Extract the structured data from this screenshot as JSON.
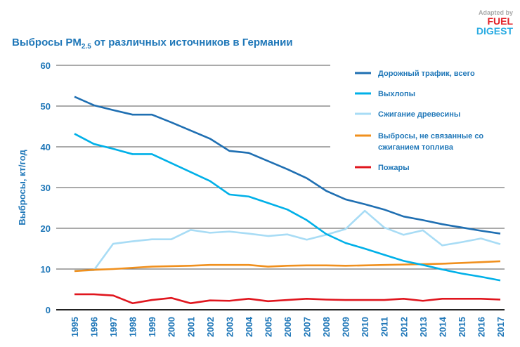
{
  "logo": {
    "line1": "Adapted by",
    "line2": "FUEL",
    "line3": "DIGEST"
  },
  "chart_data": {
    "type": "line",
    "title": "Выбросы PM",
    "title_sub": "2.5",
    "title_rest": " от различных источников в Германии",
    "ylabel": "Выбросы, кт/год",
    "xlabel": "",
    "ylim": [
      0,
      60
    ],
    "yticks": [
      0,
      10,
      20,
      30,
      40,
      50,
      60
    ],
    "grid": true,
    "legend": "right",
    "x": [
      1995,
      1996,
      1997,
      1998,
      1999,
      2000,
      2001,
      2002,
      2003,
      2004,
      2005,
      2006,
      2007,
      2008,
      2009,
      2010,
      2011,
      2012,
      2013,
      2014,
      2015,
      2016,
      2017
    ],
    "series": [
      {
        "name": "Дорожный трафик, всего",
        "color": "#1f6fb2",
        "values": [
          52.3,
          50.2,
          49.0,
          47.9,
          47.9,
          46.0,
          44.0,
          42.0,
          39.0,
          38.5,
          36.5,
          34.5,
          32.3,
          29.2,
          27.1,
          25.9,
          24.6,
          22.9,
          22.0,
          21.0,
          20.2,
          19.4,
          18.7
        ]
      },
      {
        "name": "Выхлопы",
        "color": "#00b0e8",
        "values": [
          43.2,
          40.7,
          39.5,
          38.2,
          38.2,
          36.0,
          33.8,
          31.6,
          28.3,
          27.8,
          26.2,
          24.6,
          22.0,
          18.6,
          16.4,
          15.0,
          13.5,
          12.0,
          11.0,
          9.9,
          8.9,
          8.1,
          7.2
        ]
      },
      {
        "name": "Сжигание древесины",
        "color": "#a8dcf5",
        "values": [
          9.6,
          9.7,
          16.2,
          16.8,
          17.3,
          17.3,
          19.6,
          18.9,
          19.2,
          18.7,
          18.1,
          18.5,
          17.2,
          18.4,
          19.8,
          24.3,
          20.2,
          18.4,
          19.5,
          15.8,
          16.6,
          17.5,
          16.1
        ]
      },
      {
        "name": "Выбросы, не связанные со сжиганием топлива",
        "name_lines": [
          "Выбросы, не связанные со",
          "сжиганием топлива"
        ],
        "color": "#f0901e",
        "values": [
          9.5,
          9.8,
          10.0,
          10.3,
          10.6,
          10.7,
          10.8,
          11.0,
          11.0,
          11.0,
          10.6,
          10.8,
          10.9,
          10.9,
          10.8,
          10.9,
          11.0,
          11.1,
          11.2,
          11.3,
          11.5,
          11.7,
          11.9
        ]
      },
      {
        "name": "Пожары",
        "color": "#e0161e",
        "values": [
          3.8,
          3.8,
          3.5,
          1.6,
          2.4,
          2.9,
          1.6,
          2.3,
          2.2,
          2.7,
          2.1,
          2.4,
          2.7,
          2.5,
          2.4,
          2.4,
          2.4,
          2.7,
          2.2,
          2.7,
          2.7,
          2.7,
          2.5
        ]
      }
    ]
  }
}
